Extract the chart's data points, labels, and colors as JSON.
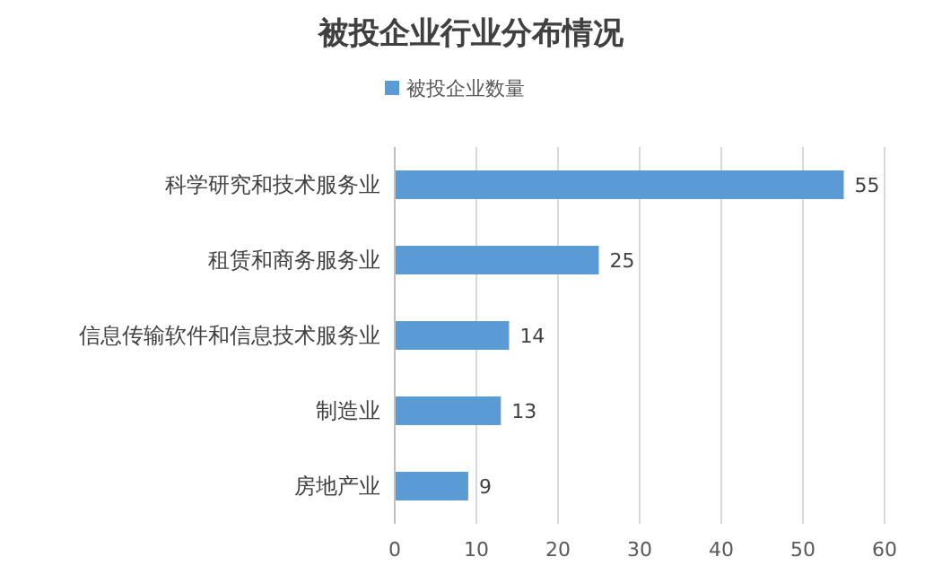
{
  "chart_data": {
    "type": "bar",
    "orientation": "horizontal",
    "title": "被投企业行业分布情况",
    "categories": [
      "科学研究和技术服务业",
      "租赁和商务服务业",
      "信息传输软件和信息技术服务业",
      "制造业",
      "房地产业"
    ],
    "series": [
      {
        "name": "被投企业数量",
        "color": "#5b9bd5",
        "values": [
          55,
          25,
          14,
          13,
          9
        ]
      }
    ],
    "xlim": [
      0,
      60
    ],
    "xticks": [
      0,
      10,
      20,
      30,
      40,
      50,
      60
    ],
    "grid": "x",
    "legend": "top",
    "data_labels": true
  }
}
